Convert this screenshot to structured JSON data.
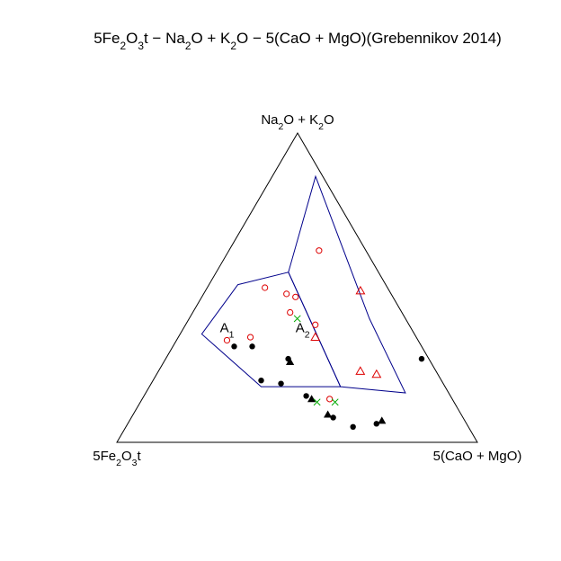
{
  "chart_data": {
    "type": "scatter",
    "ternary": true,
    "title": {
      "parts": [
        {
          "t": "5Fe"
        },
        {
          "t": "2",
          "sub": true
        },
        {
          "t": "O"
        },
        {
          "t": "3",
          "sub": true
        },
        {
          "t": "t − Na"
        },
        {
          "t": "2",
          "sub": true
        },
        {
          "t": "O + K"
        },
        {
          "t": "2",
          "sub": true
        },
        {
          "t": "O − 5(CaO + MgO)(Grebennikov 2014)"
        }
      ]
    },
    "vertex_labels": {
      "left": {
        "parts": [
          {
            "t": "5Fe"
          },
          {
            "t": "2",
            "sub": true
          },
          {
            "t": "O"
          },
          {
            "t": "3",
            "sub": true
          },
          {
            "t": "t"
          }
        ]
      },
      "top": {
        "parts": [
          {
            "t": "Na"
          },
          {
            "t": "2",
            "sub": true
          },
          {
            "t": "O + K"
          },
          {
            "t": "2",
            "sub": true
          },
          {
            "t": "O"
          }
        ]
      },
      "right": {
        "parts": [
          {
            "t": "5(CaO + MgO)"
          }
        ]
      }
    },
    "field_labels": [
      {
        "name": "A1",
        "parts": [
          {
            "t": "A"
          },
          {
            "t": "1",
            "sub": true
          }
        ],
        "top": 0.37,
        "right": 0.12
      },
      {
        "name": "A2",
        "parts": [
          {
            "t": "A"
          },
          {
            "t": "2",
            "sub": true
          }
        ],
        "top": 0.37,
        "right": 0.33
      }
    ],
    "fields": [
      {
        "name": "A1",
        "color": "#00008b",
        "vertices": [
          {
            "top": 0.51,
            "right": 0.08
          },
          {
            "top": 0.55,
            "right": 0.2
          },
          {
            "top": 0.18,
            "right": 0.53
          },
          {
            "top": 0.18,
            "right": 0.31
          },
          {
            "top": 0.35,
            "right": 0.06
          }
        ]
      },
      {
        "name": "A2",
        "color": "#00008b",
        "vertices": [
          {
            "top": 0.86,
            "right": 0.12
          },
          {
            "top": 0.4,
            "right": 0.5
          },
          {
            "top": 0.16,
            "right": 0.72
          },
          {
            "top": 0.18,
            "right": 0.53
          },
          {
            "top": 0.55,
            "right": 0.2
          }
        ]
      }
    ],
    "series": [
      {
        "marker": "open-circle",
        "color": "#dd0000",
        "points": [
          {
            "top": 0.62,
            "right": 0.25
          },
          {
            "top": 0.5,
            "right": 0.16
          },
          {
            "top": 0.48,
            "right": 0.23
          },
          {
            "top": 0.47,
            "right": 0.26
          },
          {
            "top": 0.42,
            "right": 0.27
          },
          {
            "top": 0.38,
            "right": 0.36
          },
          {
            "top": 0.34,
            "right": 0.2
          },
          {
            "top": 0.33,
            "right": 0.14
          },
          {
            "top": 0.14,
            "right": 0.52
          }
        ]
      },
      {
        "marker": "open-triangle",
        "color": "#dd0000",
        "points": [
          {
            "top": 0.49,
            "right": 0.43
          },
          {
            "top": 0.34,
            "right": 0.38
          },
          {
            "top": 0.23,
            "right": 0.56
          },
          {
            "top": 0.22,
            "right": 0.61
          }
        ]
      },
      {
        "marker": "filled-circle",
        "color": "#000000",
        "points": [
          {
            "top": 0.31,
            "right": 0.17
          },
          {
            "top": 0.31,
            "right": 0.22
          },
          {
            "top": 0.27,
            "right": 0.34
          },
          {
            "top": 0.27,
            "right": 0.71
          },
          {
            "top": 0.2,
            "right": 0.3
          },
          {
            "top": 0.19,
            "right": 0.36
          },
          {
            "top": 0.15,
            "right": 0.45
          },
          {
            "top": 0.08,
            "right": 0.56
          },
          {
            "top": 0.05,
            "right": 0.63
          },
          {
            "top": 0.06,
            "right": 0.69
          }
        ]
      },
      {
        "marker": "filled-triangle",
        "color": "#000000",
        "points": [
          {
            "top": 0.26,
            "right": 0.35
          },
          {
            "top": 0.14,
            "right": 0.47
          },
          {
            "top": 0.09,
            "right": 0.54
          },
          {
            "top": 0.07,
            "right": 0.7
          }
        ]
      },
      {
        "marker": "cross",
        "color": "#00aa00",
        "points": [
          {
            "top": 0.4,
            "right": 0.3
          },
          {
            "top": 0.13,
            "right": 0.49
          },
          {
            "top": 0.13,
            "right": 0.54
          }
        ]
      }
    ]
  }
}
